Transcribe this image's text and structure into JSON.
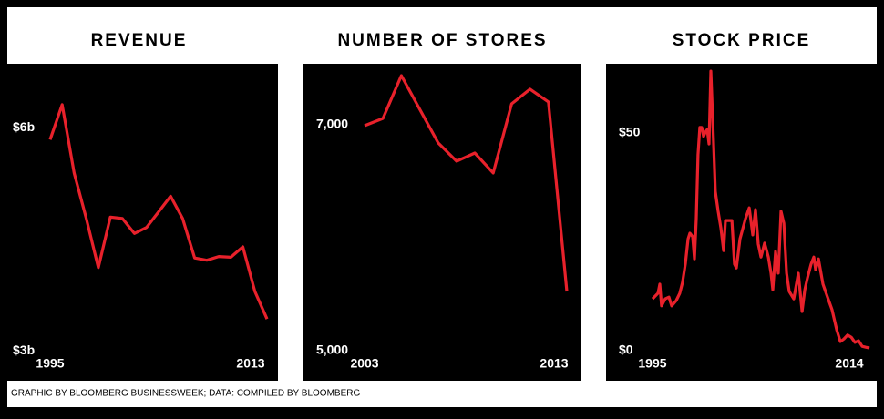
{
  "chart_data": [
    {
      "type": "line",
      "title": "REVENUE",
      "x": [
        1995,
        1996,
        1997,
        1998,
        1999,
        2000,
        2001,
        2002,
        2003,
        2004,
        2005,
        2006,
        2007,
        2008,
        2009,
        2010,
        2011,
        2012,
        2013
      ],
      "series": [
        {
          "color": "#e8212b",
          "values": [
            5.84,
            6.31,
            5.39,
            4.78,
            4.12,
            4.8,
            4.78,
            4.58,
            4.66,
            4.87,
            5.08,
            4.78,
            4.25,
            4.22,
            4.27,
            4.26,
            4.4,
            3.8,
            3.43
          ]
        }
      ],
      "xlim": [
        1990.84,
        2013.91
      ],
      "xticks": [
        1995,
        2013
      ],
      "ylim": [
        2.6,
        6.86
      ],
      "yticks": [
        {
          "value": 6,
          "label": "$6b"
        },
        {
          "value": 3,
          "label": "$3b"
        }
      ]
    },
    {
      "type": "line",
      "title": "NUMBER OF STORES",
      "x": [
        2003,
        2003.91,
        2004.82,
        2005.73,
        2006.64,
        2007.55,
        2008.45,
        2009.36,
        2010.27,
        2011.18,
        2012.09,
        2013
      ],
      "series": [
        {
          "color": "#e8212b",
          "values": [
            6992,
            7056,
            7435,
            7137,
            6839,
            6677,
            6750,
            6573,
            7185,
            7315,
            7202,
            5524
          ]
        }
      ],
      "xlim": [
        1999.98,
        2013.72
      ],
      "xticks": [
        2003,
        2013
      ],
      "ylim": [
        4734,
        7540
      ],
      "yticks": [
        {
          "value": 7000,
          "label": "7,000"
        },
        {
          "value": 5000,
          "label": "5,000"
        }
      ]
    },
    {
      "type": "line",
      "title": "STOCK PRICE",
      "x": [
        1995,
        1995.48,
        1995.64,
        1995.79,
        1996.11,
        1996.43,
        1996.67,
        1997.07,
        1997.38,
        1997.62,
        1997.86,
        1998.1,
        1998.26,
        1998.5,
        1998.66,
        1998.82,
        1998.97,
        1999.13,
        1999.29,
        1999.45,
        1999.61,
        1999.77,
        1999.93,
        2000.09,
        2000.25,
        2000.48,
        2000.72,
        2000.96,
        2001.2,
        2001.36,
        2001.68,
        2001.92,
        2002.15,
        2002.31,
        2002.63,
        2003.11,
        2003.43,
        2003.74,
        2003.98,
        2004.22,
        2004.46,
        2004.78,
        2005.1,
        2005.33,
        2005.49,
        2005.73,
        2005.97,
        2006.21,
        2006.45,
        2006.69,
        2006.92,
        2007.32,
        2007.72,
        2008.04,
        2008.28,
        2008.51,
        2008.83,
        2009.07,
        2009.23,
        2009.47,
        2009.86,
        2010.26,
        2010.66,
        2011.06,
        2011.38,
        2011.69,
        2012.01,
        2012.33,
        2012.65,
        2012.97,
        2013.28,
        2013.6,
        2013.92
      ],
      "series": [
        {
          "color": "#e8212b",
          "values": [
            11.9,
            13.2,
            15.3,
            10.3,
            11.9,
            12.3,
            10.3,
            11.5,
            13.2,
            15.7,
            19.9,
            25.7,
            27,
            26.2,
            21.1,
            30.3,
            45,
            51.3,
            51.3,
            49.2,
            50.2,
            50.8,
            47.5,
            64.2,
            53.3,
            36.6,
            32,
            28.2,
            23,
            29.9,
            29.9,
            29.9,
            19.9,
            19,
            25.7,
            30.3,
            32.8,
            26.6,
            32.4,
            24.5,
            21.5,
            24.7,
            21.5,
            17.8,
            14,
            22.8,
            17.8,
            32,
            29.3,
            17.8,
            13.6,
            11.9,
            17.8,
            9,
            14,
            16.7,
            19.9,
            21.5,
            18.6,
            21.1,
            15.3,
            12.3,
            9.4,
            4.8,
            2.1,
            2.7,
            3.6,
            3.1,
            1.9,
            2.3,
            1,
            0.8,
            0.6
          ]
        }
      ],
      "xlim": [
        1990.95,
        2014.55
      ],
      "xticks": [
        1995,
        2014
      ],
      "ylim": [
        -6.9,
        65.9
      ],
      "yticks": [
        {
          "value": 50,
          "label": "$50"
        },
        {
          "value": 0,
          "label": "$0"
        }
      ]
    }
  ],
  "footer": "GRAPHIC BY BLOOMBERG BUSINESSWEEK; DATA: COMPILED BY BLOOMBERG"
}
